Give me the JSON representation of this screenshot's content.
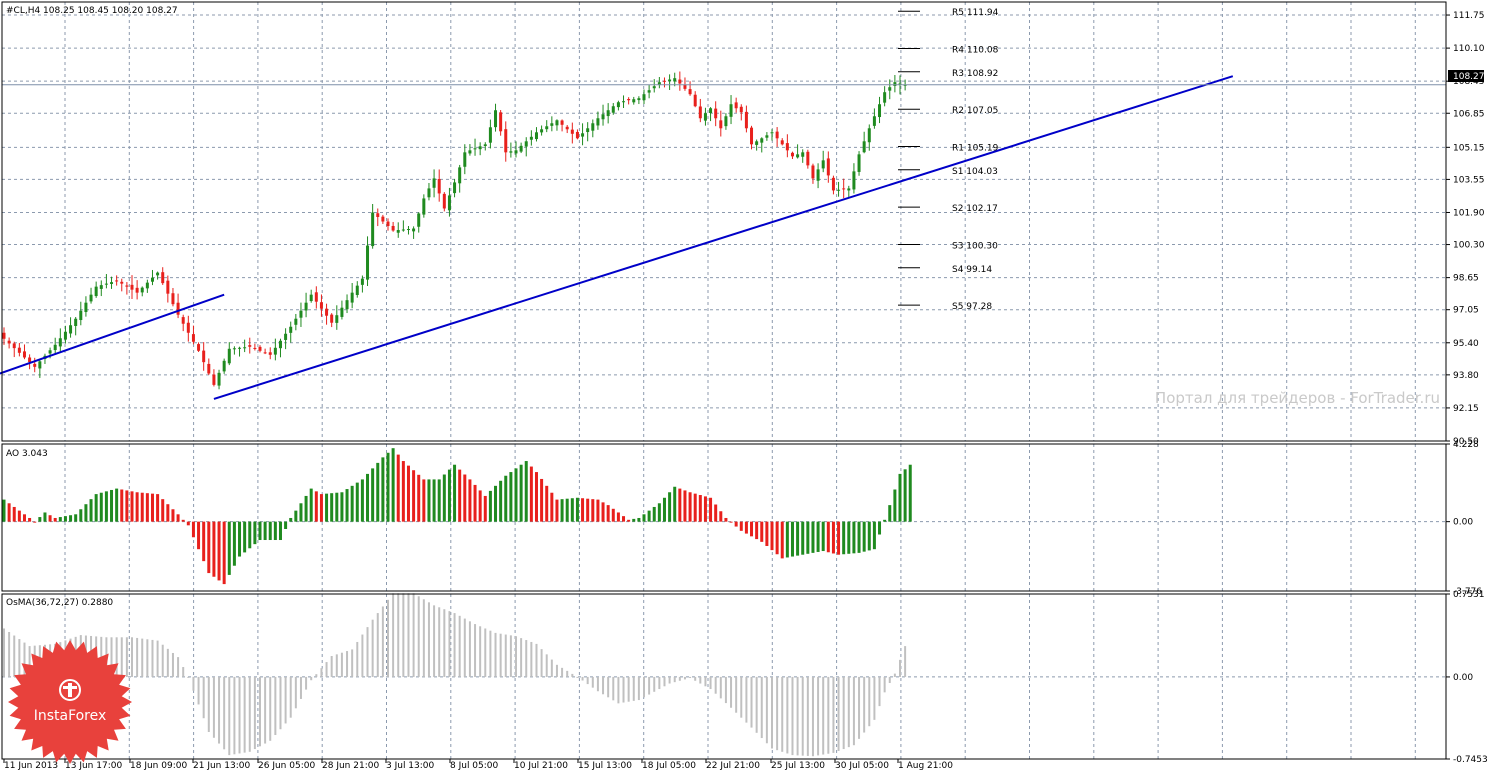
{
  "header": {
    "main": "#CL,H4  108.25 108.45 108.20 108.27",
    "ao": "AO 3.043",
    "osma": "OsMA(36,72,27) 0.2880"
  },
  "price_tag": "108.27",
  "watermark": "Портал для трейдеров - ForTrader.ru",
  "logo": {
    "text": "InstaForex",
    "color": "#e8413c"
  },
  "colors": {
    "bull": "#1f8a1f",
    "bear": "#e8201c",
    "osma": "#c0c0c0",
    "trend": "#0000c8",
    "grid": "#8c9aae"
  },
  "chart_data": [
    {
      "type": "candlestick",
      "symbol": "#CL,H4",
      "ylim": [
        90.5,
        112.4
      ],
      "y_ticks": [
        "111.75",
        "110.10",
        "108.45",
        "106.85",
        "105.15",
        "103.55",
        "101.90",
        "100.30",
        "98.65",
        "97.05",
        "95.40",
        "93.80",
        "92.15",
        "90.50"
      ],
      "x_ticks": [
        "11 Jun 2013",
        "13 Jun 17:00",
        "18 Jun 09:00",
        "21 Jun 13:00",
        "26 Jun 05:00",
        "28 Jun 21:00",
        "3 Jul 13:00",
        "8 Jul 05:00",
        "10 Jul 21:00",
        "15 Jul 13:00",
        "18 Jul 05:00",
        "22 Jul 21:00",
        "25 Jul 13:00",
        "30 Jul 05:00",
        "1 Aug 21:00"
      ],
      "close_path": [
        [
          0,
          95.6
        ],
        [
          6,
          94.2
        ],
        [
          10,
          95.3
        ],
        [
          14,
          96.6
        ],
        [
          18,
          98.2
        ],
        [
          22,
          98.5
        ],
        [
          26,
          97.9
        ],
        [
          30,
          98.9
        ],
        [
          34,
          96.8
        ],
        [
          38,
          95.0
        ],
        [
          41,
          93.3
        ],
        [
          44,
          95.1
        ],
        [
          48,
          95.2
        ],
        [
          52,
          94.8
        ],
        [
          56,
          96.2
        ],
        [
          60,
          97.8
        ],
        [
          64,
          96.4
        ],
        [
          68,
          97.9
        ],
        [
          70,
          98.6
        ],
        [
          72,
          101.9
        ],
        [
          76,
          101.0
        ],
        [
          80,
          101.1
        ],
        [
          82,
          102.6
        ],
        [
          84,
          103.6
        ],
        [
          86,
          102.1
        ],
        [
          88,
          103.4
        ],
        [
          90,
          104.9
        ],
        [
          94,
          105.3
        ],
        [
          96,
          107.0
        ],
        [
          98,
          104.9
        ],
        [
          100,
          105.0
        ],
        [
          104,
          105.9
        ],
        [
          108,
          106.5
        ],
        [
          112,
          105.6
        ],
        [
          116,
          106.6
        ],
        [
          120,
          107.4
        ],
        [
          124,
          107.6
        ],
        [
          128,
          108.4
        ],
        [
          131,
          108.6
        ],
        [
          134,
          107.8
        ],
        [
          136,
          106.6
        ],
        [
          138,
          107.1
        ],
        [
          140,
          106.1
        ],
        [
          142,
          107.3
        ],
        [
          144,
          106.9
        ],
        [
          146,
          105.3
        ],
        [
          150,
          105.9
        ],
        [
          154,
          104.7
        ],
        [
          156,
          104.9
        ],
        [
          158,
          103.6
        ],
        [
          160,
          104.5
        ],
        [
          162,
          103.0
        ],
        [
          165,
          103.1
        ],
        [
          167,
          104.8
        ],
        [
          169,
          106.1
        ],
        [
          172,
          107.9
        ],
        [
          174,
          108.4
        ],
        [
          176,
          108.27
        ]
      ],
      "pivots": [
        {
          "label": "R5",
          "value": 111.94
        },
        {
          "label": "R4",
          "value": 110.08
        },
        {
          "label": "R3",
          "value": 108.92
        },
        {
          "label": "R2",
          "value": 107.05
        },
        {
          "label": "R1",
          "value": 105.19
        },
        {
          "label": "S1",
          "value": 104.03
        },
        {
          "label": "S2",
          "value": 102.17
        },
        {
          "label": "S3",
          "value": 100.3
        },
        {
          "label": "S4",
          "value": 99.14
        },
        {
          "label": "S5",
          "value": 97.28
        }
      ],
      "trendlines": [
        {
          "from": [
            -1,
            93.85
          ],
          "to": [
            43,
            97.8
          ]
        },
        {
          "from": [
            41,
            92.6
          ],
          "to": [
            240,
            108.7
          ]
        }
      ]
    },
    {
      "type": "histogram",
      "name": "AO",
      "ylim": [
        -3.776,
        4.228
      ],
      "y_ticks": [
        "4.228",
        "0.00",
        "-3.776"
      ],
      "path": [
        [
          0,
          1.2
        ],
        [
          4,
          0.4
        ],
        [
          6,
          0.0
        ],
        [
          8,
          0.5
        ],
        [
          10,
          0.2
        ],
        [
          14,
          0.4
        ],
        [
          18,
          1.5
        ],
        [
          22,
          1.8
        ],
        [
          26,
          1.6
        ],
        [
          30,
          1.5
        ],
        [
          34,
          0.4
        ],
        [
          36,
          -0.2
        ],
        [
          40,
          -2.8
        ],
        [
          43,
          -3.4
        ],
        [
          46,
          -1.9
        ],
        [
          50,
          -1.0
        ],
        [
          54,
          -1.0
        ],
        [
          56,
          0.2
        ],
        [
          60,
          1.8
        ],
        [
          62,
          1.5
        ],
        [
          66,
          1.6
        ],
        [
          70,
          2.3
        ],
        [
          74,
          3.5
        ],
        [
          76,
          4.0
        ],
        [
          78,
          3.3
        ],
        [
          82,
          2.3
        ],
        [
          85,
          2.3
        ],
        [
          88,
          3.1
        ],
        [
          91,
          2.3
        ],
        [
          94,
          1.4
        ],
        [
          98,
          2.5
        ],
        [
          102,
          3.3
        ],
        [
          104,
          2.7
        ],
        [
          108,
          1.2
        ],
        [
          112,
          1.3
        ],
        [
          116,
          1.2
        ],
        [
          118,
          0.9
        ],
        [
          122,
          0.1
        ],
        [
          124,
          0.2
        ],
        [
          128,
          1.0
        ],
        [
          131,
          1.9
        ],
        [
          134,
          1.6
        ],
        [
          138,
          1.3
        ],
        [
          141,
          0.2
        ],
        [
          144,
          -0.5
        ],
        [
          148,
          -1.1
        ],
        [
          152,
          -2.0
        ],
        [
          156,
          -1.8
        ],
        [
          160,
          -1.6
        ],
        [
          163,
          -1.8
        ],
        [
          167,
          -1.7
        ],
        [
          170,
          -1.5
        ],
        [
          173,
          0.9
        ],
        [
          175,
          2.6
        ],
        [
          177,
          3.1
        ]
      ]
    },
    {
      "type": "histogram",
      "name": "OsMA(36,72,27)",
      "ylim": [
        -0.7453,
        0.7531
      ],
      "y_ticks": [
        "0.7531",
        "0.00",
        "-0.7453"
      ],
      "path": [
        [
          0,
          0.44
        ],
        [
          5,
          0.28
        ],
        [
          10,
          0.3
        ],
        [
          15,
          0.38
        ],
        [
          20,
          0.36
        ],
        [
          25,
          0.36
        ],
        [
          30,
          0.33
        ],
        [
          34,
          0.18
        ],
        [
          36,
          0.0
        ],
        [
          40,
          -0.5
        ],
        [
          44,
          -0.71
        ],
        [
          48,
          -0.68
        ],
        [
          52,
          -0.58
        ],
        [
          56,
          -0.37
        ],
        [
          60,
          -0.03
        ],
        [
          64,
          0.19
        ],
        [
          68,
          0.25
        ],
        [
          72,
          0.52
        ],
        [
          76,
          0.76
        ],
        [
          80,
          0.76
        ],
        [
          84,
          0.65
        ],
        [
          88,
          0.58
        ],
        [
          92,
          0.48
        ],
        [
          96,
          0.4
        ],
        [
          100,
          0.37
        ],
        [
          104,
          0.3
        ],
        [
          108,
          0.11
        ],
        [
          112,
          0.0
        ],
        [
          116,
          -0.13
        ],
        [
          120,
          -0.24
        ],
        [
          124,
          -0.21
        ],
        [
          130,
          -0.06
        ],
        [
          134,
          -0.01
        ],
        [
          138,
          -0.11
        ],
        [
          142,
          -0.28
        ],
        [
          146,
          -0.46
        ],
        [
          150,
          -0.65
        ],
        [
          154,
          -0.71
        ],
        [
          158,
          -0.72
        ],
        [
          162,
          -0.69
        ],
        [
          166,
          -0.62
        ],
        [
          170,
          -0.39
        ],
        [
          172,
          -0.14
        ],
        [
          174,
          0.03
        ],
        [
          176,
          0.28
        ]
      ]
    }
  ]
}
